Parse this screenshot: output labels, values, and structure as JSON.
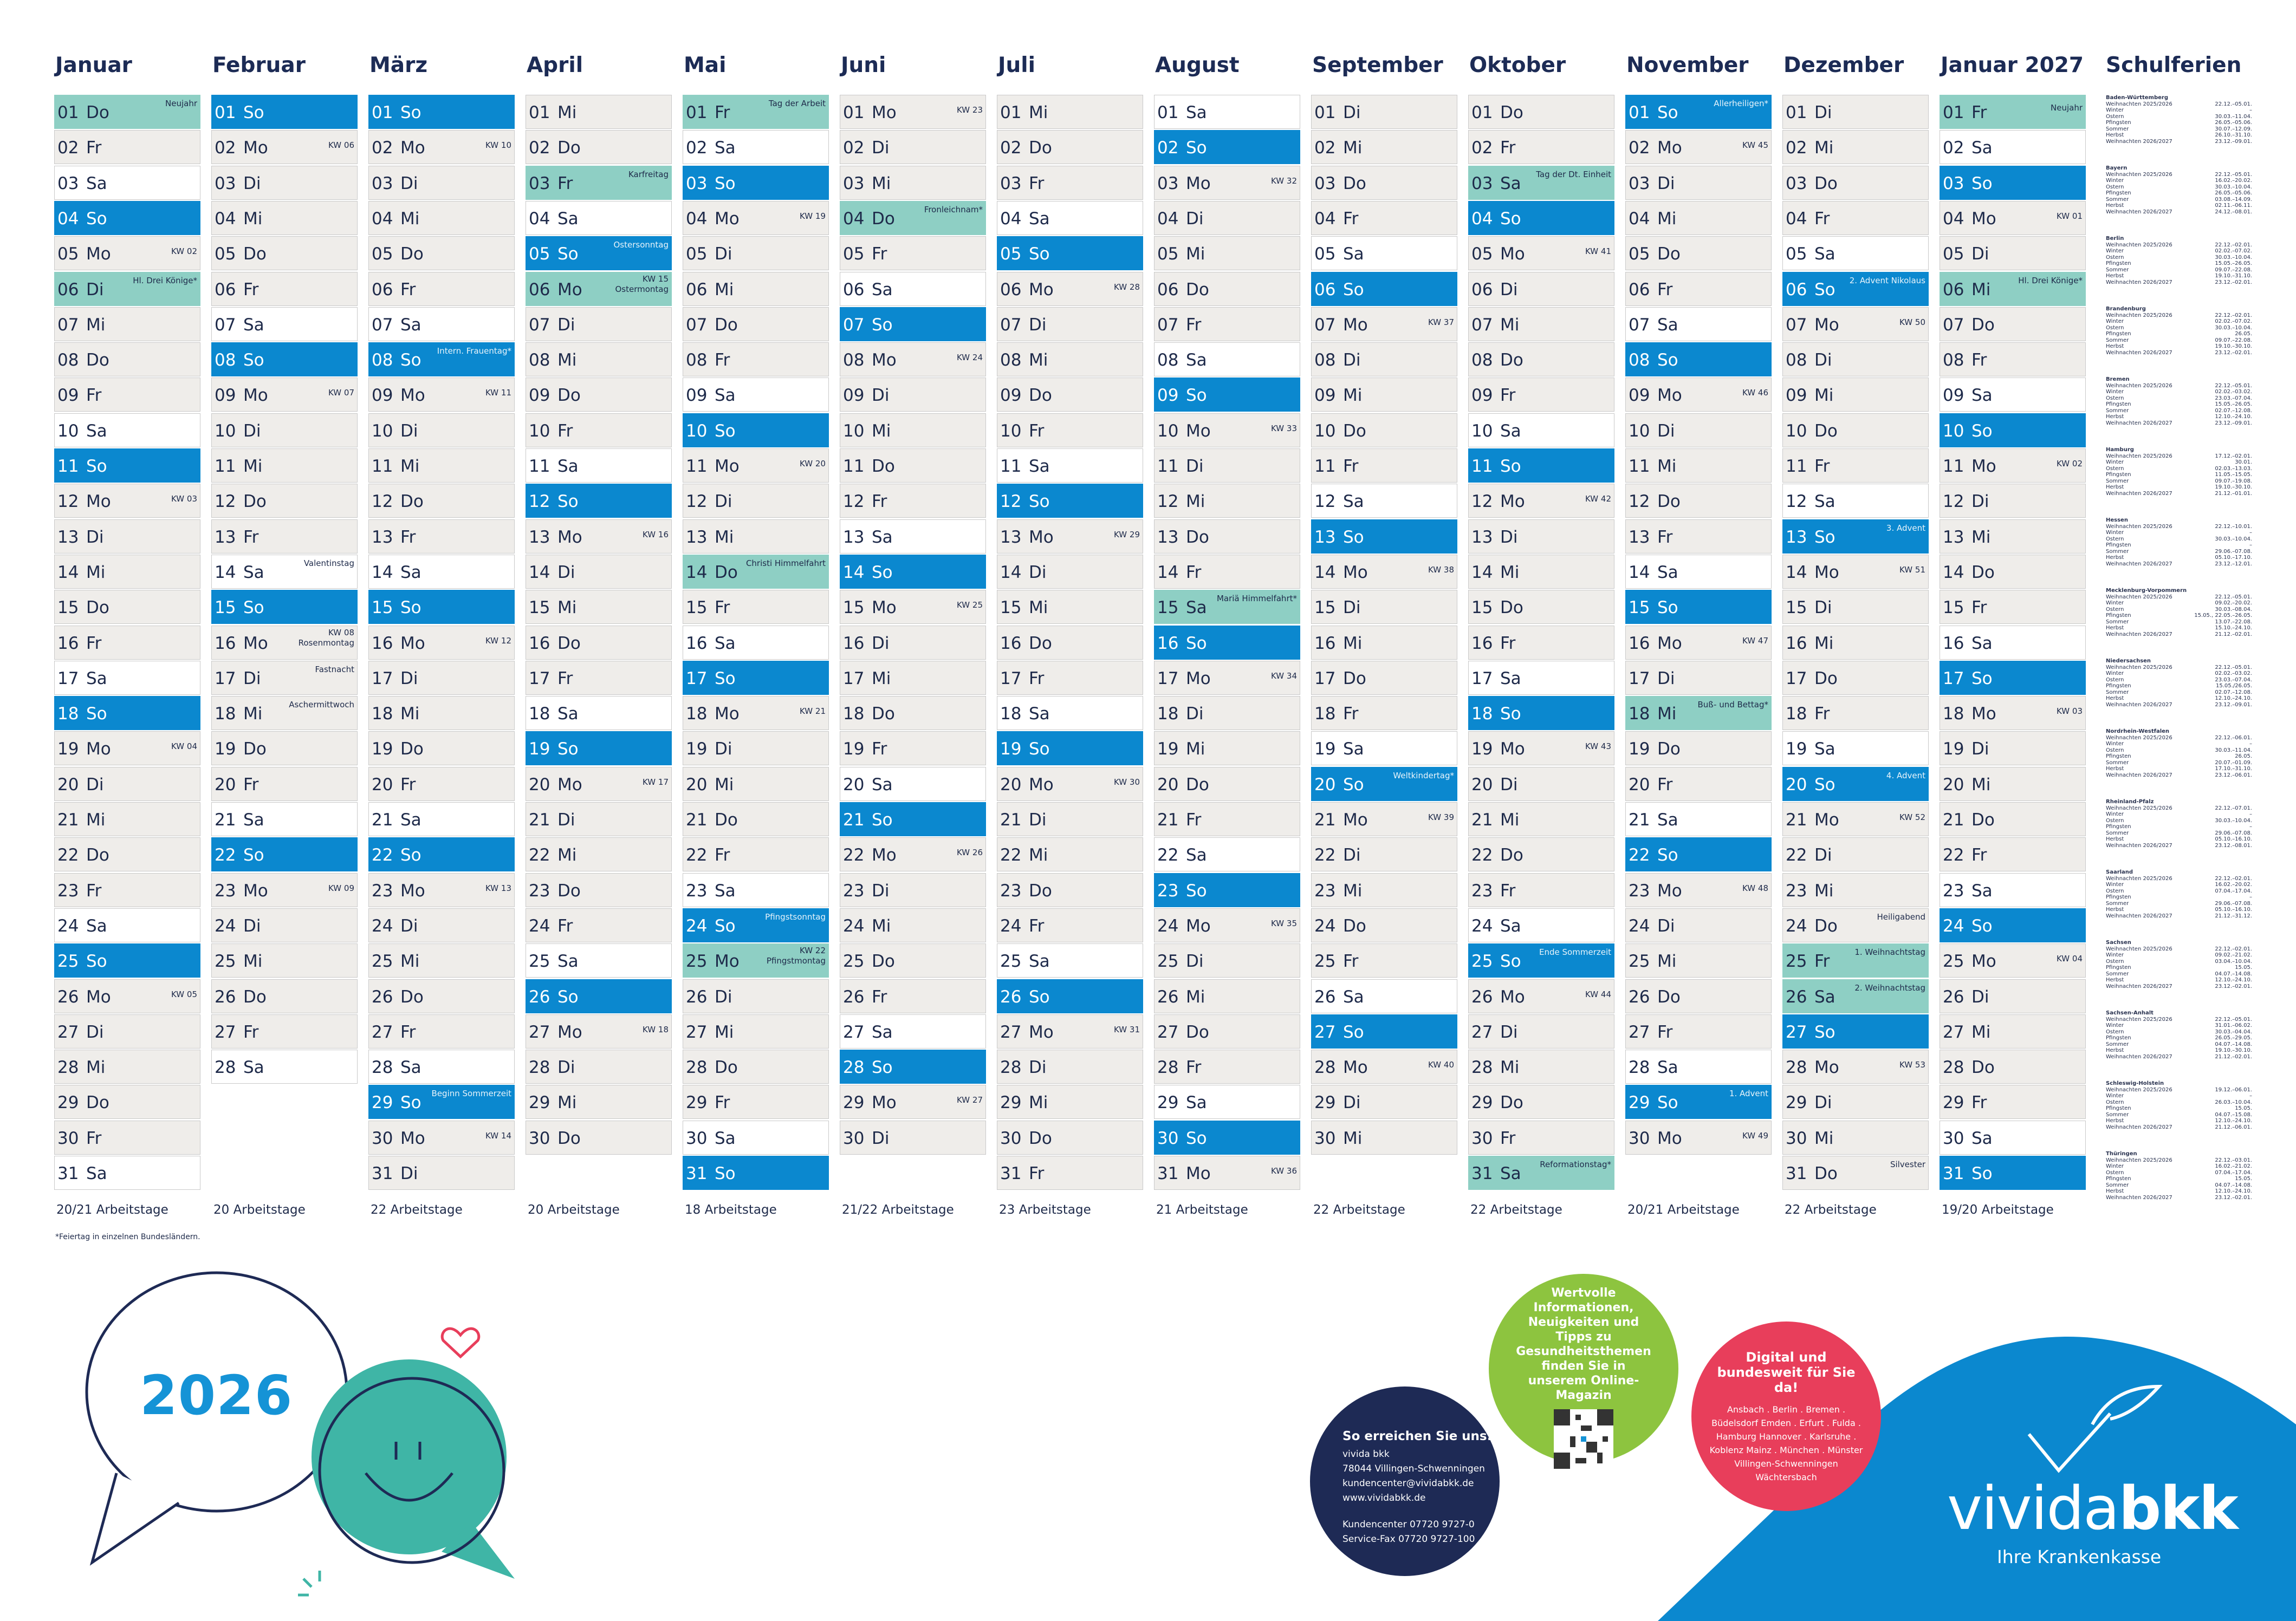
{
  "year": "2026",
  "footnote": "*Feiertag in einzelnen Bundesländern.",
  "months": [
    {
      "title": "Januar",
      "start": "2026-01-01",
      "days": 31,
      "atage": "20/21 Arbeitstage",
      "notes": {
        "1": "Neujahr",
        "6": "Hl. Drei Könige*"
      }
    },
    {
      "title": "Februar",
      "start": "2026-02-01",
      "days": 28,
      "atage": "20 Arbeitstage",
      "notes": {
        "14": "Valentinstag",
        "16": "Rosenmontag",
        "17": "Fastnacht",
        "18": "Aschermittwoch"
      }
    },
    {
      "title": "März",
      "start": "2026-03-01",
      "days": 31,
      "atage": "22 Arbeitstage",
      "notes": {
        "8": "Intern. Frauentag*",
        "29": "Beginn Sommerzeit"
      }
    },
    {
      "title": "April",
      "start": "2026-04-01",
      "days": 30,
      "atage": "20 Arbeitstage",
      "notes": {
        "3": "Karfreitag",
        "5": "Ostersonntag",
        "6": "Ostermontag"
      }
    },
    {
      "title": "Mai",
      "start": "2026-05-01",
      "days": 31,
      "atage": "18 Arbeitstage",
      "notes": {
        "1": "Tag der Arbeit",
        "14": "Christi Himmelfahrt",
        "24": "Pfingstsonntag",
        "25": "Pfingstmontag"
      }
    },
    {
      "title": "Juni",
      "start": "2026-06-01",
      "days": 30,
      "atage": "21/22 Arbeitstage",
      "notes": {
        "4": "Fronleichnam*"
      }
    },
    {
      "title": "Juli",
      "start": "2026-07-01",
      "days": 31,
      "atage": "23 Arbeitstage",
      "notes": {}
    },
    {
      "title": "August",
      "start": "2026-08-01",
      "days": 31,
      "atage": "21 Arbeitstage",
      "notes": {
        "15": "Mariä Himmelfahrt*"
      }
    },
    {
      "title": "September",
      "start": "2026-09-01",
      "days": 30,
      "atage": "22 Arbeitstage",
      "notes": {
        "20": "Weltkindertag*"
      }
    },
    {
      "title": "Oktober",
      "start": "2026-10-01",
      "days": 31,
      "atage": "22 Arbeitstage",
      "notes": {
        "3": "Tag der Dt. Einheit",
        "25": "Ende Sommerzeit",
        "31": "Reformationstag*"
      }
    },
    {
      "title": "November",
      "start": "2026-11-01",
      "days": 30,
      "atage": "20/21 Arbeitstage",
      "notes": {
        "1": "Allerheiligen*",
        "18": "Buß- und Bettag*",
        "29": "1. Advent"
      }
    },
    {
      "title": "Dezember",
      "start": "2026-12-01",
      "days": 31,
      "atage": "22 Arbeitstage",
      "notes": {
        "6": "2. Advent Nikolaus",
        "13": "3. Advent",
        "20": "4. Advent",
        "24": "Heiligabend",
        "25": "1. Weihnachtstag",
        "26": "2. Weihnachtstag",
        "31": "Silvester"
      }
    },
    {
      "title": "Januar 2027",
      "start": "2027-01-01",
      "days": 31,
      "atage": "19/20 Arbeitstage",
      "notes": {
        "1": "Neujahr",
        "6": "Hl. Drei Könige*"
      }
    }
  ],
  "holidays": [
    "2026-01-01",
    "2026-01-06",
    "2026-03-08",
    "2026-04-03",
    "2026-04-05",
    "2026-04-06",
    "2026-05-01",
    "2026-05-14",
    "2026-05-24",
    "2026-05-25",
    "2026-06-04",
    "2026-08-15",
    "2026-09-20",
    "2026-10-03",
    "2026-10-31",
    "2026-11-01",
    "2026-11-18",
    "2026-12-25",
    "2026-12-26",
    "2027-01-01",
    "2027-01-06"
  ],
  "weekday_abbr": [
    "So",
    "Mo",
    "Di",
    "Mi",
    "Do",
    "Fr",
    "Sa"
  ],
  "kw_prefix": "KW",
  "schulferien": {
    "title": "Schulferien",
    "states": [
      {
        "name": "Baden-Württemberg",
        "rows": [
          [
            "Weihnachten 2025/2026",
            "22.12.–05.01."
          ],
          [
            "Winter",
            "–"
          ],
          [
            "Ostern",
            "30.03.–11.04."
          ],
          [
            "Pfingsten",
            "26.05.–05.06."
          ],
          [
            "Sommer",
            "30.07.–12.09."
          ],
          [
            "Herbst",
            "26.10.–31.10."
          ],
          [
            "Weihnachten 2026/2027",
            "23.12.–09.01."
          ]
        ]
      },
      {
        "name": "Bayern",
        "rows": [
          [
            "Weihnachten 2025/2026",
            "22.12.–05.01."
          ],
          [
            "Winter",
            "16.02.–20.02."
          ],
          [
            "Ostern",
            "30.03.–10.04."
          ],
          [
            "Pfingsten",
            "26.05.–05.06."
          ],
          [
            "Sommer",
            "03.08.–14.09."
          ],
          [
            "Herbst",
            "02.11.–06.11."
          ],
          [
            "Weihnachten 2026/2027",
            "24.12.–08.01."
          ]
        ]
      },
      {
        "name": "Berlin",
        "rows": [
          [
            "Weihnachten 2025/2026",
            "22.12.–02.01."
          ],
          [
            "Winter",
            "02.02.–07.02."
          ],
          [
            "Ostern",
            "30.03.–10.04."
          ],
          [
            "Pfingsten",
            "15.05.–26.05."
          ],
          [
            "Sommer",
            "09.07.–22.08."
          ],
          [
            "Herbst",
            "19.10.–31.10."
          ],
          [
            "Weihnachten 2026/2027",
            "23.12.–02.01."
          ]
        ]
      },
      {
        "name": "Brandenburg",
        "rows": [
          [
            "Weihnachten 2025/2026",
            "22.12.–02.01."
          ],
          [
            "Winter",
            "02.02.–07.02."
          ],
          [
            "Ostern",
            "30.03.–10.04."
          ],
          [
            "Pfingsten",
            "26.05."
          ],
          [
            "Sommer",
            "09.07.–22.08."
          ],
          [
            "Herbst",
            "19.10.–30.10."
          ],
          [
            "Weihnachten 2026/2027",
            "23.12.–02.01."
          ]
        ]
      },
      {
        "name": "Bremen",
        "rows": [
          [
            "Weihnachten 2025/2026",
            "22.12.–05.01."
          ],
          [
            "Winter",
            "02.02.–03.02."
          ],
          [
            "Ostern",
            "23.03.–07.04."
          ],
          [
            "Pfingsten",
            "15.05.–26.05."
          ],
          [
            "Sommer",
            "02.07.–12.08."
          ],
          [
            "Herbst",
            "12.10.–24.10."
          ],
          [
            "Weihnachten 2026/2027",
            "23.12.–09.01."
          ]
        ]
      },
      {
        "name": "Hamburg",
        "rows": [
          [
            "Weihnachten 2025/2026",
            "17.12.–02.01."
          ],
          [
            "Winter",
            "30.01."
          ],
          [
            "Ostern",
            "02.03.–13.03."
          ],
          [
            "Pfingsten",
            "11.05.–15.05."
          ],
          [
            "Sommer",
            "09.07.–19.08."
          ],
          [
            "Herbst",
            "19.10.–30.10."
          ],
          [
            "Weihnachten 2026/2027",
            "21.12.–01.01."
          ]
        ]
      },
      {
        "name": "Hessen",
        "rows": [
          [
            "Weihnachten 2025/2026",
            "22.12.–10.01."
          ],
          [
            "Winter",
            "–"
          ],
          [
            "Ostern",
            "30.03.–10.04."
          ],
          [
            "Pfingsten",
            "–"
          ],
          [
            "Sommer",
            "29.06.–07.08."
          ],
          [
            "Herbst",
            "05.10.–17.10."
          ],
          [
            "Weihnachten 2026/2027",
            "23.12.–12.01."
          ]
        ]
      },
      {
        "name": "Mecklenburg-Vorpommern",
        "rows": [
          [
            "Weihnachten 2025/2026",
            "22.12.–05.01."
          ],
          [
            "Winter",
            "09.02.–20.02."
          ],
          [
            "Ostern",
            "30.03.–08.04."
          ],
          [
            "Pfingsten",
            "15.05., 22.05.–26.05."
          ],
          [
            "Sommer",
            "13.07.–22.08."
          ],
          [
            "Herbst",
            "15.10.–24.10."
          ],
          [
            "Weihnachten 2026/2027",
            "21.12.–02.01."
          ]
        ]
      },
      {
        "name": "Niedersachsen",
        "rows": [
          [
            "Weihnachten 2025/2026",
            "22.12.–05.01."
          ],
          [
            "Winter",
            "02.02.–03.02."
          ],
          [
            "Ostern",
            "23.03.–07.04."
          ],
          [
            "Pfingsten",
            "15.05./26.05."
          ],
          [
            "Sommer",
            "02.07.–12.08."
          ],
          [
            "Herbst",
            "12.10.–24.10."
          ],
          [
            "Weihnachten 2026/2027",
            "23.12.–09.01."
          ]
        ]
      },
      {
        "name": "Nordrhein-Westfalen",
        "rows": [
          [
            "Weihnachten 2025/2026",
            "22.12.–06.01."
          ],
          [
            "Winter",
            "–"
          ],
          [
            "Ostern",
            "30.03.–11.04."
          ],
          [
            "Pfingsten",
            "26.05."
          ],
          [
            "Sommer",
            "20.07.–01.09."
          ],
          [
            "Herbst",
            "17.10.–31.10."
          ],
          [
            "Weihnachten 2026/2027",
            "23.12.–06.01."
          ]
        ]
      },
      {
        "name": "Rheinland-Pfalz",
        "rows": [
          [
            "Weihnachten 2025/2026",
            "22.12.–07.01."
          ],
          [
            "Winter",
            "–"
          ],
          [
            "Ostern",
            "30.03.–10.04."
          ],
          [
            "Pfingsten",
            "–"
          ],
          [
            "Sommer",
            "29.06.–07.08."
          ],
          [
            "Herbst",
            "05.10.–16.10."
          ],
          [
            "Weihnachten 2026/2027",
            "23.12.–08.01."
          ]
        ]
      },
      {
        "name": "Saarland",
        "rows": [
          [
            "Weihnachten 2025/2026",
            "22.12.–02.01."
          ],
          [
            "Winter",
            "16.02.–20.02."
          ],
          [
            "Ostern",
            "07.04.–17.04."
          ],
          [
            "Pfingsten",
            "–"
          ],
          [
            "Sommer",
            "29.06.–07.08."
          ],
          [
            "Herbst",
            "05.10.–16.10."
          ],
          [
            "Weihnachten 2026/2027",
            "21.12.–31.12."
          ]
        ]
      },
      {
        "name": "Sachsen",
        "rows": [
          [
            "Weihnachten 2025/2026",
            "22.12.–02.01."
          ],
          [
            "Winter",
            "09.02.–21.02."
          ],
          [
            "Ostern",
            "03.04.–10.04."
          ],
          [
            "Pfingsten",
            "15.05."
          ],
          [
            "Sommer",
            "04.07.–14.08."
          ],
          [
            "Herbst",
            "12.10.–24.10."
          ],
          [
            "Weihnachten 2026/2027",
            "23.12.–02.01."
          ]
        ]
      },
      {
        "name": "Sachsen-Anhalt",
        "rows": [
          [
            "Weihnachten 2025/2026",
            "22.12.–05.01."
          ],
          [
            "Winter",
            "31.01.–06.02."
          ],
          [
            "Ostern",
            "30.03.–04.04."
          ],
          [
            "Pfingsten",
            "26.05.–29.05."
          ],
          [
            "Sommer",
            "04.07.–14.08."
          ],
          [
            "Herbst",
            "19.10.–30.10."
          ],
          [
            "Weihnachten 2026/2027",
            "21.12.–02.01."
          ]
        ]
      },
      {
        "name": "Schleswig-Holstein",
        "rows": [
          [
            "Weihnachten 2025/2026",
            "19.12.–06.01."
          ],
          [
            "Winter",
            "–"
          ],
          [
            "Ostern",
            "26.03.–10.04."
          ],
          [
            "Pfingsten",
            "15.05."
          ],
          [
            "Sommer",
            "04.07.–15.08."
          ],
          [
            "Herbst",
            "12.10.–24.10."
          ],
          [
            "Weihnachten 2026/2027",
            "21.12.–06.01."
          ]
        ]
      },
      {
        "name": "Thüringen",
        "rows": [
          [
            "Weihnachten 2025/2026",
            "22.12.–03.01."
          ],
          [
            "Winter",
            "16.02.–21.02."
          ],
          [
            "Ostern",
            "07.04.–17.04."
          ],
          [
            "Pfingsten",
            "15.05."
          ],
          [
            "Sommer",
            "04.07.–14.08."
          ],
          [
            "Herbst",
            "12.10.–24.10."
          ],
          [
            "Weihnachten 2026/2027",
            "23.12.–02.01."
          ]
        ]
      }
    ]
  },
  "contact": {
    "heading": "So erreichen Sie uns:",
    "lines": [
      "vivida bkk",
      "78044 Villingen-Schwenningen",
      "kundencenter@vividabkk.de",
      "www.vividabkk.de"
    ],
    "phone": [
      "Kundencenter  07720 9727-0",
      "Service-Fax  07720 9727-100"
    ]
  },
  "magazine": {
    "text": "Wertvolle Informationen, Neuigkeiten und Tipps zu Gesundheitsthemen finden Sie in unserem Online-Magazin"
  },
  "digital": {
    "heading": "Digital und bundesweit für Sie da!",
    "locations": "Ansbach . Berlin . Bremen . Büdelsdorf Emden . Erfurt . Fulda . Hamburg Hannover . Karlsruhe . Koblenz Mainz . München . Münster Villingen-Schwenningen Wächtersbach"
  },
  "brand": {
    "name_light": "vivida",
    "name_bold": "bkk",
    "slogan": "Ihre Krankenkasse"
  },
  "colors": {
    "sunday": "#0b88cf",
    "holiday": "#8ecfc4",
    "weekday": "#efedea",
    "saturday": "#ffffff",
    "title": "#1c2b55",
    "brand": "#0b88cf"
  }
}
